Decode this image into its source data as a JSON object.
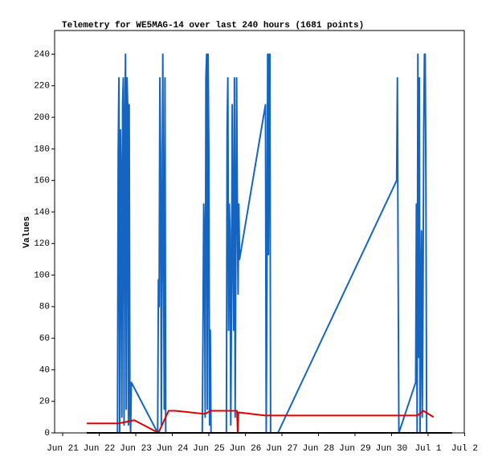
{
  "chart_data": {
    "type": "line",
    "title": "Telemetry for WE5MAG-14 over last 240 hours (1681 points)",
    "y_label": "Values",
    "xlim": [
      -0.22,
      10.99
    ],
    "xticks": [
      {
        "value": 0,
        "label": "Jun 21"
      },
      {
        "value": 1,
        "label": "Jun 22"
      },
      {
        "value": 2,
        "label": "Jun 23"
      },
      {
        "value": 3,
        "label": "Jun 24"
      },
      {
        "value": 4,
        "label": "Jun 25"
      },
      {
        "value": 5,
        "label": "Jun 26"
      },
      {
        "value": 6,
        "label": "Jun 27"
      },
      {
        "value": 7,
        "label": "Jun 28"
      },
      {
        "value": 8,
        "label": "Jun 29"
      },
      {
        "value": 9,
        "label": "Jun 30"
      },
      {
        "value": 10,
        "label": "Jul 1"
      },
      {
        "value": 11,
        "label": "Jul 2"
      }
    ],
    "ylim": [
      0,
      255
    ],
    "yticks": [
      0,
      20,
      40,
      60,
      80,
      100,
      120,
      140,
      160,
      180,
      200,
      220,
      240
    ],
    "grid": false,
    "series": [
      {
        "color": "#1565c0",
        "x": [
          1.5,
          1.52,
          1.54,
          1.56,
          1.58,
          1.6,
          1.62,
          1.64,
          1.66,
          1.68,
          1.7,
          1.72,
          1.74,
          1.76,
          1.78,
          1.8,
          1.82,
          1.84,
          1.86,
          1.88,
          2.6,
          2.62,
          2.64,
          2.66,
          2.68,
          2.7,
          2.72,
          2.74,
          2.76,
          2.78,
          2.8,
          2.82,
          3.82,
          3.84,
          3.86,
          3.88,
          3.9,
          3.92,
          3.94,
          3.96,
          3.98,
          4.0,
          4.02,
          4.04,
          4.06,
          4.48,
          4.5,
          4.52,
          4.54,
          4.56,
          4.58,
          4.6,
          4.62,
          4.64,
          4.66,
          4.68,
          4.7,
          4.72,
          4.74,
          4.76,
          4.78,
          4.8,
          4.82,
          4.84,
          5.55,
          5.57,
          5.59,
          5.61,
          5.63,
          5.65,
          5.67,
          5.69,
          5.89,
          9.14,
          9.16,
          9.18,
          9.2,
          9.66,
          9.68,
          9.7,
          9.72,
          9.74,
          9.76,
          9.78,
          9.8,
          9.82,
          9.84,
          9.86,
          9.88,
          9.9,
          9.92,
          9.94,
          9.96
        ],
        "values": [
          0,
          177,
          225,
          0,
          192,
          160,
          10,
          208,
          225,
          5,
          192,
          240,
          15,
          225,
          208,
          5,
          208,
          15,
          0,
          32,
          0,
          97,
          80,
          225,
          177,
          5,
          112,
          240,
          112,
          15,
          225,
          0,
          0,
          65,
          145,
          120,
          10,
          225,
          240,
          15,
          240,
          177,
          5,
          65,
          0,
          0,
          192,
          225,
          65,
          145,
          128,
          5,
          80,
          208,
          113,
          65,
          225,
          10,
          113,
          225,
          145,
          88,
          145,
          110,
          208,
          0,
          97,
          240,
          113,
          240,
          240,
          0,
          0,
          160,
          225,
          105,
          0,
          32,
          145,
          0,
          240,
          48,
          225,
          0,
          72,
          128,
          10,
          80,
          192,
          240,
          240,
          160,
          0
        ]
      },
      {
        "color": "#e00000",
        "x": [
          0.66,
          1.52,
          1.96,
          2.62,
          2.9,
          3.08,
          3.9,
          4.04,
          4.77,
          4.79,
          4.81,
          5.54,
          9.71,
          9.87,
          10.15
        ],
        "values": [
          6,
          6,
          8,
          0,
          14,
          14,
          12,
          14,
          14,
          0,
          13,
          11,
          11,
          14,
          10
        ]
      },
      {
        "color": "#000000",
        "x": [
          0.66,
          10.66
        ],
        "values": [
          0,
          0
        ]
      }
    ]
  }
}
